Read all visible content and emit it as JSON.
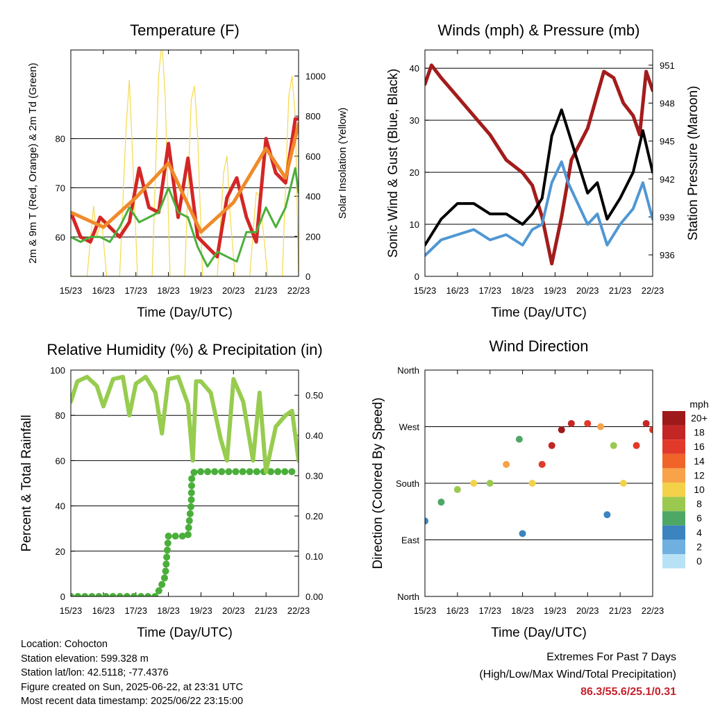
{
  "x_tick_labels": [
    "15/23",
    "16/23",
    "17/23",
    "18/23",
    "19/23",
    "20/23",
    "21/23",
    "22/23"
  ],
  "chart_data": [
    {
      "type": "line",
      "title": "Temperature (F)",
      "xlabel": "Time (Day/UTC)",
      "ylabel": "2m & 9m T (Red, Orange) & 2m Td (Green)",
      "ylabel_right": "Solar Insolation (Yellow)",
      "ylim": [
        52,
        98
      ],
      "yticks": [
        60,
        70,
        80
      ],
      "y2lim": [
        0,
        1130
      ],
      "y2ticks": [
        0,
        200,
        400,
        600,
        800,
        1000
      ],
      "grid": "horizontal",
      "series": [
        {
          "name": "2m T",
          "color": "#d32626",
          "x": [
            0,
            0.3,
            0.6,
            0.9,
            1.2,
            1.5,
            1.8,
            2.1,
            2.4,
            2.7,
            3.0,
            3.3,
            3.6,
            3.9,
            4.2,
            4.5,
            4.8,
            5.1,
            5.4,
            5.7,
            6.0,
            6.3,
            6.6,
            6.9,
            7.0
          ],
          "y": [
            65,
            60,
            59,
            64,
            62,
            60,
            63,
            74,
            66,
            65,
            79,
            64,
            76,
            60,
            58,
            56,
            68,
            72,
            64,
            59,
            80,
            73,
            71,
            84,
            84
          ]
        },
        {
          "name": "9m T",
          "color": "#f08a2a",
          "x": [
            0,
            1,
            2,
            3,
            4,
            5,
            6,
            6.6,
            7.0
          ],
          "y": [
            65,
            62,
            68,
            75,
            61,
            67,
            78,
            72,
            83
          ]
        },
        {
          "name": "2m Td",
          "color": "#4aaf3a",
          "x": [
            0,
            0.3,
            0.6,
            0.9,
            1.2,
            1.5,
            1.8,
            2.1,
            2.4,
            2.7,
            3.0,
            3.3,
            3.6,
            3.9,
            4.2,
            4.5,
            4.8,
            5.1,
            5.4,
            5.7,
            6.0,
            6.3,
            6.6,
            6.9,
            7.0
          ],
          "y": [
            60,
            59,
            60,
            60,
            59,
            62,
            66,
            63,
            64,
            65,
            70,
            65,
            64,
            58,
            54,
            57,
            56,
            55,
            61,
            61,
            66,
            62,
            66,
            74,
            69
          ]
        },
        {
          "name": "Solar Insolation",
          "color": "#f5d94a",
          "axis": "right",
          "x": [
            0,
            0.5,
            0.7,
            0.8,
            0.95,
            1.1,
            1.5,
            1.7,
            1.8,
            1.9,
            2.05,
            2.2,
            2.5,
            2.7,
            2.8,
            2.9,
            3.05,
            3.2,
            3.5,
            3.7,
            3.8,
            3.9,
            4.05,
            4.2,
            4.5,
            4.7,
            4.8,
            4.9,
            5.05,
            5.2,
            5.5,
            5.7,
            5.8,
            5.9,
            6.05,
            6.2,
            6.5,
            6.7,
            6.8,
            6.9,
            7.0
          ],
          "y": [
            0,
            0,
            350,
            200,
            280,
            0,
            0,
            750,
            980,
            600,
            0,
            0,
            0,
            1000,
            1170,
            900,
            0,
            0,
            0,
            880,
            950,
            700,
            0,
            0,
            0,
            520,
            600,
            300,
            0,
            0,
            0,
            420,
            400,
            250,
            0,
            0,
            0,
            900,
            1000,
            800,
            0
          ]
        }
      ]
    },
    {
      "type": "line",
      "title": "Winds (mph) & Pressure (mb)",
      "xlabel": "Time (Day/UTC)",
      "ylabel": "Sonic Wind & Gust (Blue, Black)",
      "ylabel_right": "Station Pressure (Maroon)",
      "ylim": [
        0,
        43.5
      ],
      "yticks": [
        0,
        10,
        20,
        30,
        40
      ],
      "y2lim": [
        934.3,
        952.2
      ],
      "y2ticks": [
        936,
        939,
        942,
        945,
        948,
        951
      ],
      "grid": "horizontal",
      "series": [
        {
          "name": "Sonic Wind",
          "color": "#4f97d3",
          "x": [
            0,
            0.5,
            1.0,
            1.5,
            2.0,
            2.5,
            3.0,
            3.3,
            3.6,
            3.9,
            4.2,
            4.4,
            4.7,
            5.0,
            5.3,
            5.6,
            6.0,
            6.4,
            6.7,
            7.0
          ],
          "y": [
            4,
            7,
            8,
            9,
            7,
            8,
            6,
            9,
            10,
            18,
            22,
            18,
            14,
            10,
            12,
            6,
            10,
            13,
            18,
            11
          ]
        },
        {
          "name": "Gust",
          "color": "#000000",
          "x": [
            0,
            0.5,
            1.0,
            1.5,
            2.0,
            2.5,
            3.0,
            3.3,
            3.6,
            3.9,
            4.2,
            4.4,
            4.7,
            5.0,
            5.3,
            5.6,
            6.0,
            6.4,
            6.7,
            7.0
          ],
          "y": [
            6,
            11,
            14,
            14,
            12,
            12,
            10,
            12,
            15,
            27,
            32,
            28,
            22,
            16,
            18,
            11,
            15,
            20,
            28,
            20
          ]
        },
        {
          "name": "Station Pressure",
          "color": "#a31c1c",
          "axis": "right",
          "x": [
            0,
            0.2,
            0.5,
            1.0,
            1.5,
            2.0,
            2.5,
            3.0,
            3.3,
            3.6,
            3.9,
            4.2,
            4.5,
            5.0,
            5.5,
            5.8,
            6.1,
            6.4,
            6.6,
            6.8,
            7.0
          ],
          "y": [
            949.5,
            951,
            950,
            948.5,
            947,
            945.5,
            943.5,
            942.5,
            941.5,
            939,
            935.3,
            939,
            943.5,
            946,
            950.5,
            950,
            948,
            947,
            945.5,
            950.5,
            949
          ]
        }
      ]
    },
    {
      "type": "line",
      "title": "Relative Humidity (%) & Precipitation (in)",
      "xlabel": "Time (Day/UTC)",
      "ylabel": "Percent & Total Rainfall",
      "ylim": [
        0,
        100
      ],
      "yticks": [
        0,
        20,
        40,
        60,
        80,
        100
      ],
      "y2lim": [
        0,
        0.5625
      ],
      "y2ticks": [
        "0.00",
        "0.10",
        "0.20",
        "0.30",
        "0.40",
        "0.50"
      ],
      "grid": "horizontal",
      "series": [
        {
          "name": "Relative Humidity",
          "color": "#97cc4f",
          "x": [
            0,
            0.2,
            0.5,
            0.8,
            1.0,
            1.3,
            1.6,
            1.8,
            2.0,
            2.3,
            2.6,
            2.8,
            3.0,
            3.3,
            3.6,
            3.75,
            3.85,
            4.0,
            4.3,
            4.6,
            4.8,
            5.0,
            5.3,
            5.6,
            5.8,
            6.0,
            6.3,
            6.6,
            6.8,
            7.0
          ],
          "y": [
            86,
            95,
            97,
            93,
            84,
            96,
            97,
            80,
            94,
            97,
            90,
            72,
            96,
            97,
            85,
            60,
            95,
            95,
            90,
            70,
            60,
            96,
            86,
            60,
            90,
            55,
            75,
            80,
            82,
            60
          ]
        },
        {
          "name": "Total Rainfall",
          "color": "#4aaf3a",
          "axis": "right",
          "x": [
            0,
            1.0,
            2.0,
            2.6,
            2.75,
            2.9,
            3.0,
            3.1,
            3.3,
            3.6,
            3.62,
            3.7,
            3.72,
            3.8,
            4.2,
            5.0,
            6.0,
            7.0
          ],
          "y": [
            0,
            0,
            0,
            0,
            0.02,
            0.05,
            0.15,
            0.15,
            0.15,
            0.15,
            0.17,
            0.23,
            0.3,
            0.31,
            0.31,
            0.31,
            0.31,
            0.31
          ]
        }
      ]
    },
    {
      "type": "scatter",
      "title": "Wind Direction",
      "xlabel": "Time (Day/UTC)",
      "ylabel": "Direction (Colored By Speed)",
      "ylim": [
        0,
        360
      ],
      "yticks": [
        "North",
        "East",
        "South",
        "West",
        "North"
      ],
      "color_scale": {
        "title": "mph",
        "labels": [
          "20+",
          "18",
          "16",
          "14",
          "12",
          "10",
          "8",
          "6",
          "4",
          "2",
          "0"
        ],
        "colors": [
          "#9e1a1a",
          "#c42525",
          "#e13a2a",
          "#f0642a",
          "#f8a24a",
          "#f3d24a",
          "#9bc94f",
          "#4fa765",
          "#3c84c0",
          "#6fb0e0",
          "#b7e2f6"
        ]
      },
      "series": [
        {
          "name": "Direction",
          "x": [
            0,
            0.5,
            1.0,
            1.5,
            2.0,
            2.5,
            2.9,
            3.0,
            3.3,
            3.6,
            3.9,
            4.2,
            4.5,
            5.0,
            5.4,
            5.6,
            5.8,
            6.1,
            6.5,
            6.8,
            7.0
          ],
          "y": [
            120,
            150,
            170,
            180,
            180,
            210,
            250,
            100,
            180,
            210,
            240,
            265,
            275,
            275,
            270,
            130,
            240,
            180,
            240,
            275,
            265
          ],
          "speed": [
            4,
            6,
            8,
            10,
            8,
            12,
            6,
            4,
            10,
            16,
            18,
            20,
            18,
            16,
            12,
            4,
            8,
            10,
            16,
            18,
            16
          ]
        }
      ]
    }
  ],
  "footer": {
    "location": "Location: Cohocton",
    "elevation": "Station elevation: 599.328 m",
    "latlon": "Station lat/lon: 42.5118; -77.4376",
    "created": "Figure created on Sun, 2025-06-22, at 23:31 UTC",
    "recent": "Most recent data timestamp: 2025/06/22 23:15:00"
  },
  "extremes": {
    "title": "Extremes For Past 7 Days",
    "subtitle": "(High/Low/Max Wind/Total Precipitation)",
    "values": "86.3/55.6/25.1/0.31"
  }
}
